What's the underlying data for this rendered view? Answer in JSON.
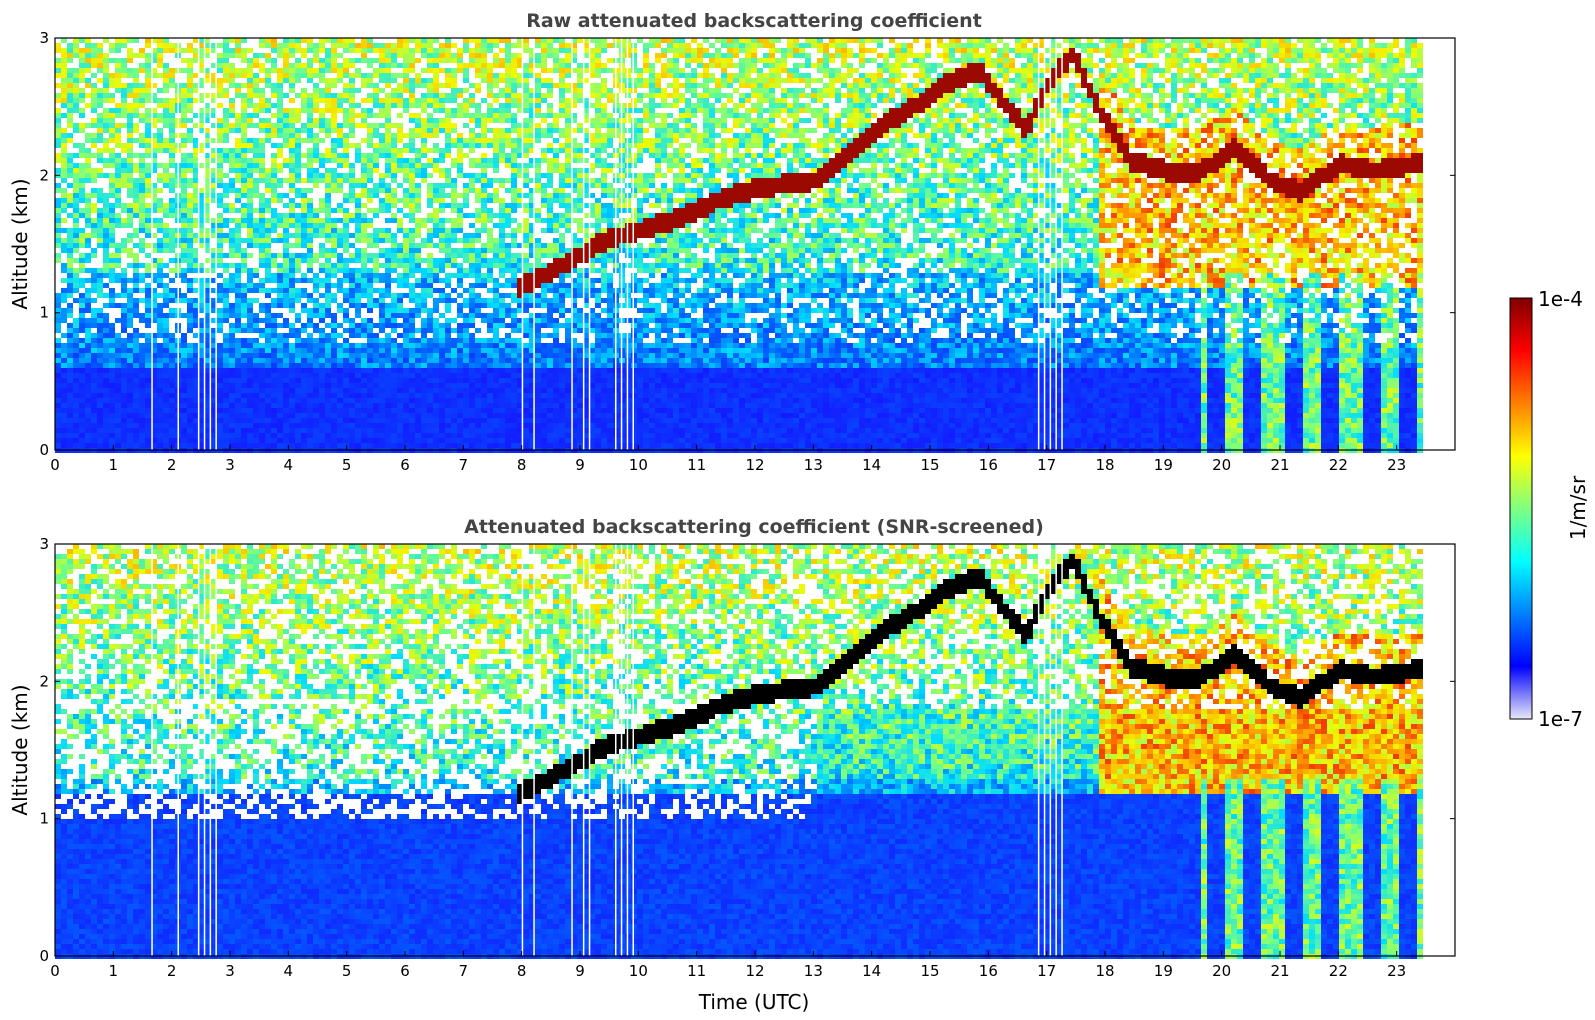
{
  "chart_data": [
    {
      "type": "heatmap",
      "title": "Raw attenuated backscattering coefficient",
      "xlabel": "",
      "ylabel": "Altitude (km)",
      "xlim": [
        0,
        24
      ],
      "ylim": [
        0,
        3
      ],
      "x_ticks": [
        "0",
        "1",
        "2",
        "3",
        "4",
        "5",
        "6",
        "7",
        "8",
        "9",
        "10",
        "11",
        "12",
        "13",
        "14",
        "15",
        "16",
        "17",
        "18",
        "19",
        "20",
        "21",
        "22",
        "23"
      ],
      "y_ticks": [
        "0",
        "1",
        "2",
        "3"
      ],
      "data_end_time": 23.4,
      "colorscale": "jet",
      "screened": false,
      "cloud_base_km": [
        {
          "t": 7.9,
          "z": 1.2
        },
        {
          "t": 8.4,
          "z": 1.3
        },
        {
          "t": 9.4,
          "z": 1.55
        },
        {
          "t": 10.0,
          "z": 1.62
        },
        {
          "t": 10.6,
          "z": 1.7
        },
        {
          "t": 11.4,
          "z": 1.85
        },
        {
          "t": 12.1,
          "z": 1.93
        },
        {
          "t": 13.0,
          "z": 1.98
        },
        {
          "t": 13.6,
          "z": 2.2
        },
        {
          "t": 14.2,
          "z": 2.4
        },
        {
          "t": 14.8,
          "z": 2.55
        },
        {
          "t": 15.3,
          "z": 2.7
        },
        {
          "t": 15.8,
          "z": 2.78
        },
        {
          "t": 16.2,
          "z": 2.55
        },
        {
          "t": 16.6,
          "z": 2.35
        },
        {
          "t": 17.0,
          "z": 2.7
        },
        {
          "t": 17.4,
          "z": 2.9
        },
        {
          "t": 17.9,
          "z": 2.45
        },
        {
          "t": 18.4,
          "z": 2.12
        },
        {
          "t": 19.0,
          "z": 2.05
        },
        {
          "t": 19.6,
          "z": 2.05
        },
        {
          "t": 20.2,
          "z": 2.22
        },
        {
          "t": 20.8,
          "z": 1.97
        },
        {
          "t": 21.3,
          "z": 1.9
        },
        {
          "t": 22.0,
          "z": 2.1
        },
        {
          "t": 22.6,
          "z": 2.05
        },
        {
          "t": 23.3,
          "z": 2.1
        }
      ],
      "missing_profiles_utc": [
        1.65,
        2.1,
        2.45,
        2.55,
        2.65,
        2.75,
        8.0,
        8.2,
        8.85,
        9.05,
        9.15,
        9.6,
        9.7,
        9.8,
        9.9,
        16.85,
        16.95,
        17.05,
        17.15,
        17.25
      ]
    },
    {
      "type": "heatmap",
      "title": "Attenuated backscattering coefficient (SNR-screened)",
      "xlabel": "Time (UTC)",
      "ylabel": "Altitude (km)",
      "xlim": [
        0,
        24
      ],
      "ylim": [
        0,
        3
      ],
      "x_ticks": [
        "0",
        "1",
        "2",
        "3",
        "4",
        "5",
        "6",
        "7",
        "8",
        "9",
        "10",
        "11",
        "12",
        "13",
        "14",
        "15",
        "16",
        "17",
        "18",
        "19",
        "20",
        "21",
        "22",
        "23"
      ],
      "y_ticks": [
        "0",
        "1",
        "2",
        "3"
      ],
      "data_end_time": 23.4,
      "colorscale": "jet",
      "screened": true,
      "cloud_base_km": [
        {
          "t": 7.9,
          "z": 1.2
        },
        {
          "t": 8.4,
          "z": 1.3
        },
        {
          "t": 9.4,
          "z": 1.55
        },
        {
          "t": 10.0,
          "z": 1.62
        },
        {
          "t": 10.6,
          "z": 1.7
        },
        {
          "t": 11.4,
          "z": 1.85
        },
        {
          "t": 12.1,
          "z": 1.93
        },
        {
          "t": 13.0,
          "z": 1.98
        },
        {
          "t": 13.6,
          "z": 2.2
        },
        {
          "t": 14.2,
          "z": 2.4
        },
        {
          "t": 14.8,
          "z": 2.55
        },
        {
          "t": 15.3,
          "z": 2.7
        },
        {
          "t": 15.8,
          "z": 2.78
        },
        {
          "t": 16.2,
          "z": 2.55
        },
        {
          "t": 16.6,
          "z": 2.35
        },
        {
          "t": 17.0,
          "z": 2.7
        },
        {
          "t": 17.4,
          "z": 2.9
        },
        {
          "t": 17.9,
          "z": 2.45
        },
        {
          "t": 18.4,
          "z": 2.12
        },
        {
          "t": 19.0,
          "z": 2.05
        },
        {
          "t": 19.6,
          "z": 2.05
        },
        {
          "t": 20.2,
          "z": 2.22
        },
        {
          "t": 20.8,
          "z": 1.97
        },
        {
          "t": 21.3,
          "z": 1.9
        },
        {
          "t": 22.0,
          "z": 2.1
        },
        {
          "t": 22.6,
          "z": 2.05
        },
        {
          "t": 23.3,
          "z": 2.1
        }
      ],
      "missing_profiles_utc": [
        1.65,
        2.1,
        2.45,
        2.55,
        2.65,
        2.75,
        8.0,
        8.2,
        8.85,
        9.05,
        9.15,
        9.6,
        9.7,
        9.8,
        9.9,
        16.85,
        16.95,
        17.05,
        17.15,
        17.25
      ]
    }
  ],
  "colorbar": {
    "label": "1/m/sr",
    "max_label": "1e-4",
    "min_label": "1e-7",
    "scale": "log",
    "colors": [
      "#e8e8f8",
      "#0000ff",
      "#0080ff",
      "#00ffff",
      "#80ff80",
      "#ffff00",
      "#ff8000",
      "#ff0000",
      "#800000"
    ]
  }
}
